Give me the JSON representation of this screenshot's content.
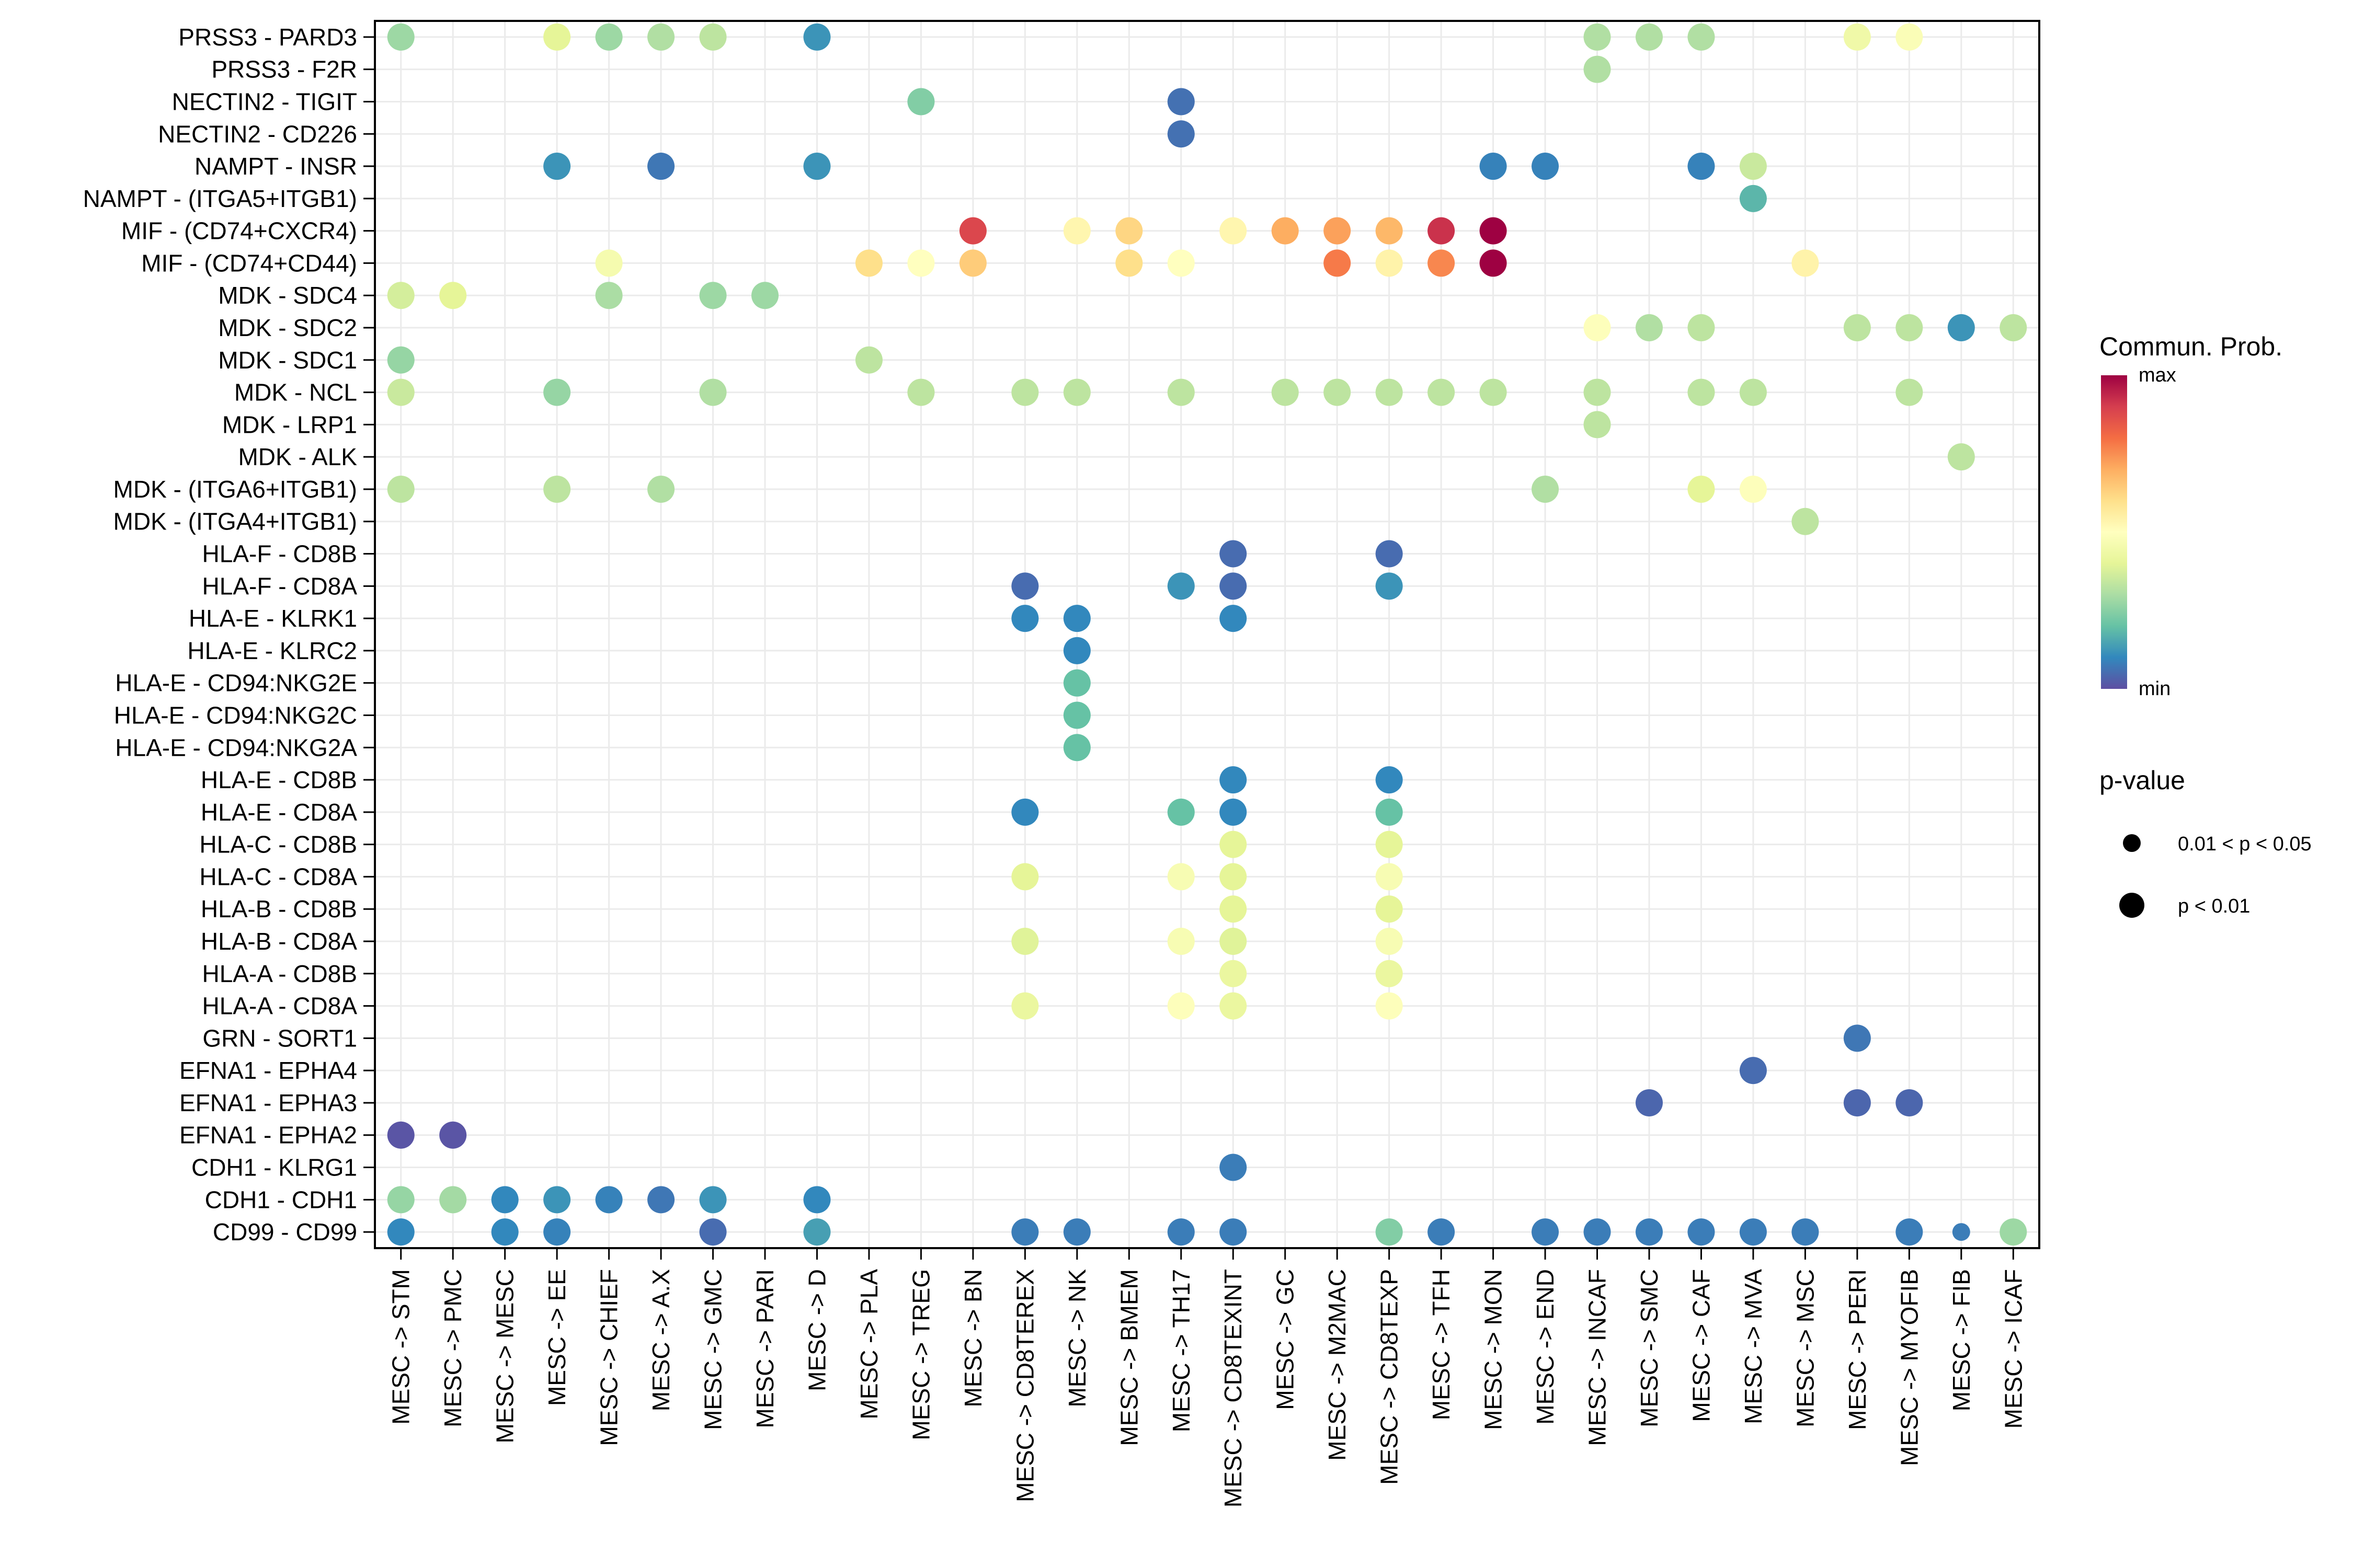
{
  "chart_data": {
    "type": "scatter",
    "subtype": "dot-matrix",
    "title": "",
    "xlabel": "",
    "ylabel": "",
    "grid": true,
    "x_categories": [
      "MESC -> STM",
      "MESC -> PMC",
      "MESC -> MESC",
      "MESC -> EE",
      "MESC -> CHIEF",
      "MESC -> A.X",
      "MESC -> GMC",
      "MESC -> PARI",
      "MESC -> D",
      "MESC -> PLA",
      "MESC -> TREG",
      "MESC -> BN",
      "MESC -> CD8TEREX",
      "MESC -> NK",
      "MESC -> BMEM",
      "MESC -> TH17",
      "MESC -> CD8TEXINT",
      "MESC -> GC",
      "MESC -> M2MAC",
      "MESC -> CD8TEXP",
      "MESC -> TFH",
      "MESC -> MON",
      "MESC -> END",
      "MESC -> INCAF",
      "MESC -> SMC",
      "MESC -> CAF",
      "MESC -> MVA",
      "MESC -> MSC",
      "MESC -> PERI",
      "MESC -> MYOFIB",
      "MESC -> FIB",
      "MESC -> ICAF"
    ],
    "y_categories_top_to_bottom": [
      "PRSS3 - PARD3",
      "PRSS3 - F2R",
      "NECTIN2 - TIGIT",
      "NECTIN2 - CD226",
      "NAMPT - INSR",
      "NAMPT - (ITGA5+ITGB1)",
      "MIF - (CD74+CXCR4)",
      "MIF - (CD74+CD44)",
      "MDK - SDC4",
      "MDK - SDC2",
      "MDK - SDC1",
      "MDK - NCL",
      "MDK - LRP1",
      "MDK - ALK",
      "MDK - (ITGA6+ITGB1)",
      "MDK - (ITGA4+ITGB1)",
      "HLA-F - CD8B",
      "HLA-F - CD8A",
      "HLA-E - KLRK1",
      "HLA-E - KLRC2",
      "HLA-E - CD94:NKG2E",
      "HLA-E - CD94:NKG2C",
      "HLA-E - CD94:NKG2A",
      "HLA-E - CD8B",
      "HLA-E - CD8A",
      "HLA-C - CD8B",
      "HLA-C - CD8A",
      "HLA-B - CD8B",
      "HLA-B - CD8A",
      "HLA-A - CD8B",
      "HLA-A - CD8A",
      "GRN - SORT1",
      "EFNA1 - EPHA4",
      "EFNA1 - EPHA3",
      "EFNA1 - EPHA2",
      "CDH1 - KLRG1",
      "CDH1 - CDH1",
      "CD99 - CD99"
    ],
    "value_scale": "normalized communication probability (0 = min, 1 = max)",
    "points_format": "[row_index, column_index, normalized_prob, p_value_class]",
    "points": [
      [
        0,
        0,
        0.28,
        "p<0.01"
      ],
      [
        0,
        3,
        0.4,
        "p<0.01"
      ],
      [
        0,
        4,
        0.28,
        "p<0.01"
      ],
      [
        0,
        5,
        0.31,
        "p<0.01"
      ],
      [
        0,
        6,
        0.33,
        "p<0.01"
      ],
      [
        0,
        8,
        0.12,
        "p<0.01"
      ],
      [
        0,
        23,
        0.31,
        "p<0.01"
      ],
      [
        0,
        24,
        0.31,
        "p<0.01"
      ],
      [
        0,
        25,
        0.31,
        "p<0.01"
      ],
      [
        0,
        28,
        0.44,
        "p<0.01"
      ],
      [
        0,
        29,
        0.48,
        "p<0.01"
      ],
      [
        1,
        23,
        0.31,
        "p<0.01"
      ],
      [
        2,
        10,
        0.24,
        "p<0.01"
      ],
      [
        2,
        15,
        0.06,
        "p<0.01"
      ],
      [
        3,
        15,
        0.06,
        "p<0.01"
      ],
      [
        4,
        3,
        0.12,
        "p<0.01"
      ],
      [
        4,
        5,
        0.07,
        "p<0.01"
      ],
      [
        4,
        8,
        0.12,
        "p<0.01"
      ],
      [
        4,
        21,
        0.09,
        "p<0.01"
      ],
      [
        4,
        22,
        0.09,
        "p<0.01"
      ],
      [
        4,
        25,
        0.09,
        "p<0.01"
      ],
      [
        4,
        26,
        0.35,
        "p<0.01"
      ],
      [
        5,
        26,
        0.18,
        "p<0.01"
      ],
      [
        6,
        11,
        0.88,
        "p<0.01"
      ],
      [
        6,
        13,
        0.53,
        "p<0.01"
      ],
      [
        6,
        14,
        0.62,
        "p<0.01"
      ],
      [
        6,
        16,
        0.53,
        "p<0.01"
      ],
      [
        6,
        17,
        0.7,
        "p<0.01"
      ],
      [
        6,
        18,
        0.72,
        "p<0.01"
      ],
      [
        6,
        19,
        0.68,
        "p<0.01"
      ],
      [
        6,
        20,
        0.92,
        "p<0.01"
      ],
      [
        6,
        21,
        1.0,
        "p<0.01"
      ],
      [
        7,
        4,
        0.46,
        "p<0.01"
      ],
      [
        7,
        9,
        0.6,
        "p<0.01"
      ],
      [
        7,
        10,
        0.5,
        "p<0.01"
      ],
      [
        7,
        11,
        0.64,
        "p<0.01"
      ],
      [
        7,
        14,
        0.6,
        "p<0.01"
      ],
      [
        7,
        15,
        0.5,
        "p<0.01"
      ],
      [
        7,
        18,
        0.78,
        "p<0.01"
      ],
      [
        7,
        19,
        0.54,
        "p<0.01"
      ],
      [
        7,
        20,
        0.76,
        "p<0.01"
      ],
      [
        7,
        21,
        1.0,
        "p<0.01"
      ],
      [
        7,
        27,
        0.54,
        "p<0.01"
      ],
      [
        8,
        0,
        0.37,
        "p<0.01"
      ],
      [
        8,
        1,
        0.4,
        "p<0.01"
      ],
      [
        8,
        4,
        0.3,
        "p<0.01"
      ],
      [
        8,
        6,
        0.28,
        "p<0.01"
      ],
      [
        8,
        7,
        0.28,
        "p<0.01"
      ],
      [
        9,
        23,
        0.49,
        "p<0.01"
      ],
      [
        9,
        24,
        0.31,
        "p<0.01"
      ],
      [
        9,
        25,
        0.33,
        "p<0.01"
      ],
      [
        9,
        28,
        0.33,
        "p<0.01"
      ],
      [
        9,
        29,
        0.33,
        "p<0.01"
      ],
      [
        9,
        30,
        0.12,
        "p<0.01"
      ],
      [
        9,
        31,
        0.33,
        "p<0.01"
      ],
      [
        10,
        0,
        0.27,
        "p<0.01"
      ],
      [
        10,
        9,
        0.33,
        "p<0.01"
      ],
      [
        11,
        0,
        0.35,
        "p<0.01"
      ],
      [
        11,
        3,
        0.27,
        "p<0.01"
      ],
      [
        11,
        6,
        0.31,
        "p<0.01"
      ],
      [
        11,
        10,
        0.33,
        "p<0.01"
      ],
      [
        11,
        12,
        0.33,
        "p<0.01"
      ],
      [
        11,
        13,
        0.33,
        "p<0.01"
      ],
      [
        11,
        15,
        0.33,
        "p<0.01"
      ],
      [
        11,
        17,
        0.33,
        "p<0.01"
      ],
      [
        11,
        18,
        0.33,
        "p<0.01"
      ],
      [
        11,
        19,
        0.33,
        "p<0.01"
      ],
      [
        11,
        20,
        0.33,
        "p<0.01"
      ],
      [
        11,
        21,
        0.33,
        "p<0.01"
      ],
      [
        11,
        23,
        0.33,
        "p<0.01"
      ],
      [
        11,
        25,
        0.33,
        "p<0.01"
      ],
      [
        11,
        26,
        0.33,
        "p<0.01"
      ],
      [
        11,
        29,
        0.33,
        "p<0.01"
      ],
      [
        12,
        23,
        0.33,
        "p<0.01"
      ],
      [
        13,
        30,
        0.33,
        "p<0.01"
      ],
      [
        14,
        0,
        0.33,
        "p<0.01"
      ],
      [
        14,
        3,
        0.33,
        "p<0.01"
      ],
      [
        14,
        5,
        0.31,
        "p<0.01"
      ],
      [
        14,
        22,
        0.31,
        "p<0.01"
      ],
      [
        14,
        25,
        0.4,
        "p<0.01"
      ],
      [
        14,
        26,
        0.49,
        "p<0.01"
      ],
      [
        15,
        27,
        0.33,
        "p<0.01"
      ],
      [
        16,
        16,
        0.05,
        "p<0.01"
      ],
      [
        16,
        19,
        0.05,
        "p<0.01"
      ],
      [
        17,
        12,
        0.05,
        "p<0.01"
      ],
      [
        17,
        15,
        0.12,
        "p<0.01"
      ],
      [
        17,
        16,
        0.05,
        "p<0.01"
      ],
      [
        17,
        19,
        0.12,
        "p<0.01"
      ],
      [
        18,
        12,
        0.1,
        "p<0.01"
      ],
      [
        18,
        13,
        0.1,
        "p<0.01"
      ],
      [
        18,
        16,
        0.1,
        "p<0.01"
      ],
      [
        19,
        13,
        0.1,
        "p<0.01"
      ],
      [
        20,
        13,
        0.2,
        "p<0.01"
      ],
      [
        21,
        13,
        0.2,
        "p<0.01"
      ],
      [
        22,
        13,
        0.2,
        "p<0.01"
      ],
      [
        23,
        16,
        0.1,
        "p<0.01"
      ],
      [
        23,
        19,
        0.1,
        "p<0.01"
      ],
      [
        24,
        12,
        0.1,
        "p<0.01"
      ],
      [
        24,
        15,
        0.2,
        "p<0.01"
      ],
      [
        24,
        16,
        0.1,
        "p<0.01"
      ],
      [
        24,
        19,
        0.2,
        "p<0.01"
      ],
      [
        25,
        16,
        0.4,
        "p<0.01"
      ],
      [
        25,
        19,
        0.4,
        "p<0.01"
      ],
      [
        26,
        12,
        0.4,
        "p<0.01"
      ],
      [
        26,
        15,
        0.47,
        "p<0.01"
      ],
      [
        26,
        16,
        0.4,
        "p<0.01"
      ],
      [
        26,
        19,
        0.47,
        "p<0.01"
      ],
      [
        27,
        16,
        0.4,
        "p<0.01"
      ],
      [
        27,
        19,
        0.4,
        "p<0.01"
      ],
      [
        28,
        12,
        0.39,
        "p<0.01"
      ],
      [
        28,
        15,
        0.47,
        "p<0.01"
      ],
      [
        28,
        16,
        0.39,
        "p<0.01"
      ],
      [
        28,
        19,
        0.47,
        "p<0.01"
      ],
      [
        29,
        16,
        0.42,
        "p<0.01"
      ],
      [
        29,
        19,
        0.42,
        "p<0.01"
      ],
      [
        30,
        12,
        0.42,
        "p<0.01"
      ],
      [
        30,
        15,
        0.49,
        "p<0.01"
      ],
      [
        30,
        16,
        0.42,
        "p<0.01"
      ],
      [
        30,
        19,
        0.49,
        "p<0.01"
      ],
      [
        31,
        28,
        0.07,
        "p<0.01"
      ],
      [
        32,
        26,
        0.05,
        "p<0.01"
      ],
      [
        33,
        24,
        0.04,
        "p<0.01"
      ],
      [
        33,
        28,
        0.04,
        "p<0.01"
      ],
      [
        33,
        29,
        0.04,
        "p<0.01"
      ],
      [
        34,
        0,
        0.01,
        "p<0.01"
      ],
      [
        34,
        1,
        0.01,
        "p<0.01"
      ],
      [
        35,
        16,
        0.08,
        "p<0.01"
      ],
      [
        36,
        0,
        0.27,
        "p<0.01"
      ],
      [
        36,
        1,
        0.29,
        "p<0.01"
      ],
      [
        36,
        2,
        0.1,
        "p<0.01"
      ],
      [
        36,
        3,
        0.12,
        "p<0.01"
      ],
      [
        36,
        4,
        0.09,
        "p<0.01"
      ],
      [
        36,
        5,
        0.07,
        "p<0.01"
      ],
      [
        36,
        6,
        0.12,
        "p<0.01"
      ],
      [
        36,
        8,
        0.1,
        "p<0.01"
      ],
      [
        37,
        0,
        0.1,
        "p<0.01"
      ],
      [
        37,
        2,
        0.1,
        "p<0.01"
      ],
      [
        37,
        3,
        0.09,
        "p<0.01"
      ],
      [
        37,
        6,
        0.05,
        "p<0.01"
      ],
      [
        37,
        8,
        0.14,
        "p<0.01"
      ],
      [
        37,
        12,
        0.08,
        "p<0.01"
      ],
      [
        37,
        13,
        0.08,
        "p<0.01"
      ],
      [
        37,
        15,
        0.08,
        "p<0.01"
      ],
      [
        37,
        16,
        0.08,
        "p<0.01"
      ],
      [
        37,
        19,
        0.24,
        "p<0.01"
      ],
      [
        37,
        20,
        0.08,
        "p<0.01"
      ],
      [
        37,
        22,
        0.08,
        "p<0.01"
      ],
      [
        37,
        23,
        0.08,
        "p<0.01"
      ],
      [
        37,
        24,
        0.08,
        "p<0.01"
      ],
      [
        37,
        25,
        0.08,
        "p<0.01"
      ],
      [
        37,
        26,
        0.08,
        "p<0.01"
      ],
      [
        37,
        27,
        0.08,
        "p<0.01"
      ],
      [
        37,
        29,
        0.08,
        "p<0.01"
      ],
      [
        37,
        30,
        0.08,
        "0.01<p<0.05"
      ],
      [
        37,
        31,
        0.28,
        "p<0.01"
      ]
    ],
    "color_legend": {
      "title": "Commun. Prob.",
      "max_label": "max",
      "min_label": "min",
      "palette": [
        "#5E4FA2",
        "#3288BD",
        "#66C2A5",
        "#ABDDA4",
        "#E6F598",
        "#FFFFBF",
        "#FEE08B",
        "#FDAE61",
        "#F46D43",
        "#D53E4F",
        "#9E0142"
      ]
    },
    "size_legend": {
      "title": "p-value",
      "entries": [
        {
          "label": "0.01 < p < 0.05",
          "class": "0.01<p<0.05"
        },
        {
          "label": "p < 0.01",
          "class": "p<0.01"
        }
      ]
    }
  }
}
